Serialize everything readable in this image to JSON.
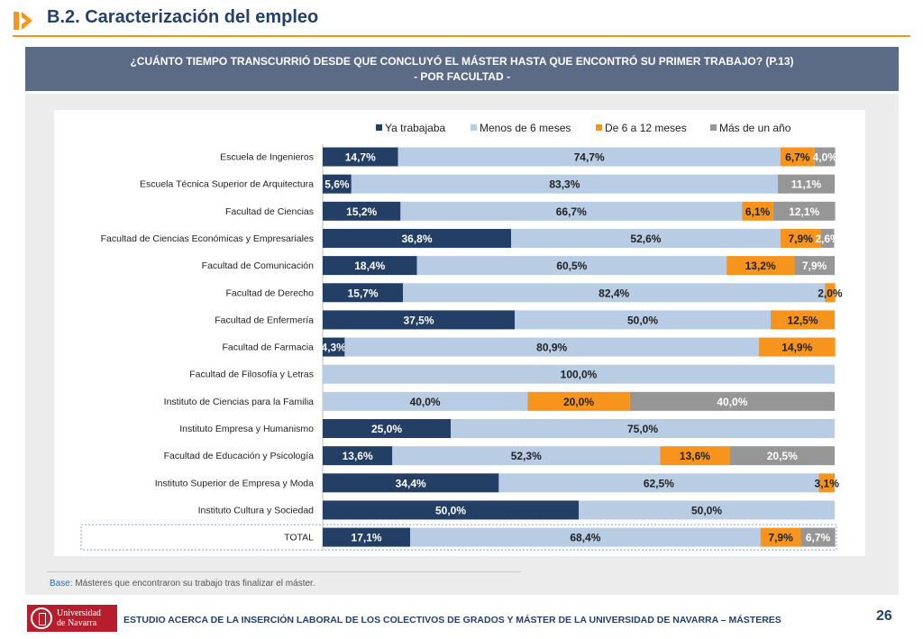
{
  "header": {
    "title": "B.2. Caracterización del empleo"
  },
  "question": {
    "line1": "¿CUÁNTO TIEMPO TRANSCURRIÓ DESDE QUE CONCLUYÓ  EL MÁSTER HASTA QUE ENCONTRÓ SU PRIMER TRABAJO? (P.13)",
    "line2": "- POR FACULTAD -"
  },
  "base_note": {
    "label": "Base:",
    "text": " Másteres que encontraron su trabajo tras finalizar el máster."
  },
  "footer": {
    "logo_line1": "Universidad",
    "logo_line2": "de Navarra",
    "text": "ESTUDIO ACERCA DE LA INSERCIÓN LABORAL DE LOS COLECTIVOS DE GRADOS Y MÁSTER DE LA UNIVERSIDAD DE NAVARRA – MÁSTERES",
    "page": "26"
  },
  "colors": {
    "ya_trabajaba": "#243f66",
    "menos_6": "#b8cce4",
    "de_6_12": "#f7941d",
    "mas_1": "#969696",
    "accent": "#f7941d",
    "title": "#24406b"
  },
  "chart_data": {
    "type": "bar",
    "orientation": "horizontal",
    "stacked": "percent",
    "legend_position": "top",
    "xlim": [
      0,
      100
    ],
    "categories": [
      "Escuela de Ingenieros",
      "Escuela Técnica Superior de Arquitectura",
      "Facultad de Ciencias",
      "Facultad de Ciencias Económicas y Empresariales",
      "Facultad de Comunicación",
      "Facultad de Derecho",
      "Facultad de Enfermería",
      "Facultad de Farmacia",
      "Facultad de Filosofía y Letras",
      "Instituto de Ciencias para la Familia",
      "Instituto Empresa y Humanismo",
      "Facultad de Educación y Psicología",
      "Instituto Superior de Empresa y Moda",
      "Instituto Cultura y Sociedad",
      "TOTAL"
    ],
    "series": [
      {
        "name": "Ya trabajaba",
        "values": [
          14.7,
          5.6,
          15.2,
          36.8,
          18.4,
          15.7,
          37.5,
          4.3,
          0,
          0,
          25.0,
          13.6,
          34.4,
          50.0,
          17.1
        ]
      },
      {
        "name": "Menos de 6 meses",
        "values": [
          74.7,
          83.3,
          66.7,
          52.6,
          60.5,
          82.4,
          50.0,
          80.9,
          100.0,
          40.0,
          75.0,
          52.3,
          62.5,
          50.0,
          68.4
        ]
      },
      {
        "name": "De 6 a 12 meses",
        "values": [
          6.7,
          0,
          6.1,
          7.9,
          13.2,
          2.0,
          12.5,
          14.9,
          0,
          20.0,
          0,
          13.6,
          3.1,
          0,
          7.9
        ]
      },
      {
        "name": "Más de un año",
        "values": [
          4.0,
          11.1,
          12.1,
          2.6,
          7.9,
          0,
          0,
          0,
          0,
          40.0,
          0,
          20.5,
          0,
          0,
          6.7
        ]
      }
    ],
    "labels": [
      [
        "14,7%",
        "74,7%",
        "6,7%",
        "4,0%"
      ],
      [
        "5,6%",
        "83,3%",
        "",
        "11,1%"
      ],
      [
        "15,2%",
        "66,7%",
        "6,1%",
        "12,1%"
      ],
      [
        "36,8%",
        "52,6%",
        "7,9%",
        "2,6%"
      ],
      [
        "18,4%",
        "60,5%",
        "13,2%",
        "7,9%"
      ],
      [
        "15,7%",
        "82,4%",
        "2,0%",
        ""
      ],
      [
        "37,5%",
        "50,0%",
        "12,5%",
        ""
      ],
      [
        "4,3%",
        "80,9%",
        "14,9%",
        ""
      ],
      [
        "",
        "100,0%",
        "",
        ""
      ],
      [
        "",
        "40,0%",
        "20,0%",
        "40,0%"
      ],
      [
        "25,0%",
        "75,0%",
        "",
        ""
      ],
      [
        "13,6%",
        "52,3%",
        "13,6%",
        "20,5%"
      ],
      [
        "34,4%",
        "62,5%",
        "3,1%",
        ""
      ],
      [
        "50,0%",
        "50,0%",
        "",
        ""
      ],
      [
        "17,1%",
        "68,4%",
        "7,9%",
        "6,7%"
      ]
    ],
    "highlight_row": "TOTAL"
  }
}
